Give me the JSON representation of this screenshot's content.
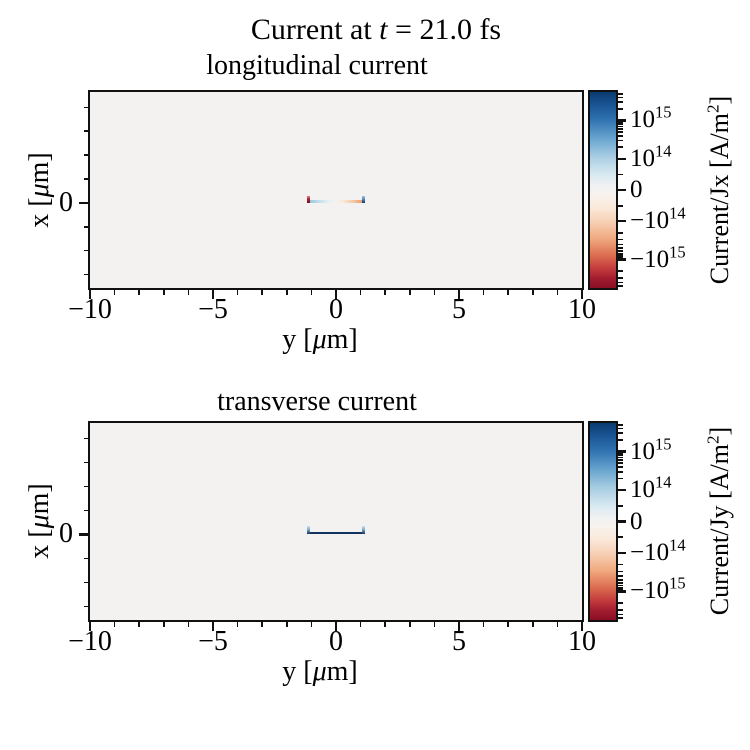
{
  "suptitle": {
    "pre": "Current at ",
    "var": "t",
    "post": " = 21.0 fs"
  },
  "colorbar_gradient_stops": [
    "#0a3b6f 0%",
    "#1b5797 7%",
    "#2f72b0 14%",
    "#6aa6cf 24%",
    "#a8cde2 33%",
    "#d8e9f1 42%",
    "#f0f1f2 48%",
    "#f7f3ef 52%",
    "#fbe9da 59%",
    "#f6cdb0 67%",
    "#f0a87f 75%",
    "#dd7052 83%",
    "#c43c3d 90%",
    "#a31d30 95%",
    "#8a0e25 100%"
  ],
  "chart_data": [
    {
      "type": "heatmap",
      "title": "longitudinal current",
      "xlabel_parts": {
        "pre": "y [",
        "mu": "μ",
        "post": "m]"
      },
      "ylabel_parts": {
        "pre": "x [",
        "mu": "μ",
        "post": "m]"
      },
      "xlim": [
        -10,
        10
      ],
      "ylim": [
        -1.78,
        2.32
      ],
      "x_major_ticks": [
        -10,
        -5,
        0,
        5,
        10
      ],
      "x_major_labels": [
        "−10",
        "−5",
        "0",
        "5",
        "10"
      ],
      "x_minor_step": 1,
      "y_major_ticks": [
        0
      ],
      "y_major_labels": [
        "0"
      ],
      "y_minor_step": 0.5,
      "bg_color": "#f3f2f1",
      "background_value": 0,
      "colorbar": {
        "unit_label": {
          "pre": "Current/Jx [A/m",
          "sup": "2",
          "post": "]"
        },
        "scale": {
          "type": "symlog",
          "linthresh": 100000000000000.0,
          "vmin": -5500000000000000.0,
          "vmax": 5500000000000000.0
        },
        "ticks": [
          {
            "base": "10",
            "exp": "15",
            "value": 1000000000000000.0
          },
          {
            "base": "10",
            "exp": "14",
            "value": 100000000000000.0
          },
          {
            "base": "0",
            "exp": "",
            "value": 0
          },
          {
            "base": "−10",
            "exp": "14",
            "value": -100000000000000.0
          },
          {
            "base": "−10",
            "exp": "15",
            "value": -1000000000000000.0
          }
        ]
      },
      "filament_data": {
        "x_um": 0,
        "y_extent_um": [
          -1.15,
          1.15
        ],
        "description": "Jx ≈ 0 everywhere except thin filament at x=0: strong negative spike (≈ −10^15 A/m²) at y=−1.15, weak positive Jx (light blue) for −1<y<0 fading to ~0 at center, weak negative (light orange) for 0<y<1, strong positive spike (≈ +10^15, dark blue) at y=+1.15"
      },
      "filament_style": {
        "line_css": "linear-gradient(90deg, #8fc0db 0%, #b8d7e8 15%, #e3eef4 35%, #f5f3f0 50%, #f9e8d9 63%, #f5c9a5 80%, #eda67c 93%, #e79a6e 100%)",
        "line_h": 2.7,
        "caps": [
          {
            "side": "left",
            "css": "linear-gradient(180deg, #d98a7a 0%, #a62433 45%, #7f1123 100%)",
            "h": 7
          },
          {
            "side": "right",
            "css": "linear-gradient(180deg, #a7c9e1 0%, #4c83b4 50%, #123a6d 100%)",
            "h": 7
          }
        ]
      }
    },
    {
      "type": "heatmap",
      "title": "transverse current",
      "xlabel_parts": {
        "pre": "y [",
        "mu": "μ",
        "post": "m]"
      },
      "ylabel_parts": {
        "pre": "x [",
        "mu": "μ",
        "post": "m]"
      },
      "xlim": [
        -10,
        10
      ],
      "ylim": [
        -1.78,
        2.32
      ],
      "x_major_ticks": [
        -10,
        -5,
        0,
        5,
        10
      ],
      "x_major_labels": [
        "−10",
        "−5",
        "0",
        "5",
        "10"
      ],
      "x_minor_step": 1,
      "y_major_ticks": [
        0
      ],
      "y_major_labels": [
        "0"
      ],
      "y_minor_step": 0.5,
      "bg_color": "#f3f2f1",
      "background_value": 0,
      "colorbar": {
        "unit_label": {
          "pre": "Current/Jy [A/m",
          "sup": "2",
          "post": "]"
        },
        "scale": {
          "type": "symlog",
          "linthresh": 100000000000000.0,
          "vmin": -5500000000000000.0,
          "vmax": 5500000000000000.0
        },
        "ticks": [
          {
            "base": "10",
            "exp": "15",
            "value": 1000000000000000.0
          },
          {
            "base": "10",
            "exp": "14",
            "value": 100000000000000.0
          },
          {
            "base": "0",
            "exp": "",
            "value": 0
          },
          {
            "base": "−10",
            "exp": "14",
            "value": -100000000000000.0
          },
          {
            "base": "−10",
            "exp": "15",
            "value": -1000000000000000.0
          }
        ]
      },
      "filament_data": {
        "x_um": 0,
        "y_extent_um": [
          -1.15,
          1.15
        ],
        "description": "Jy ≈ 0 everywhere except thin filament at x=0 spanning y=−1.15…1.15: uniform strong positive Jy (dark navy, ≈ +10^15 A/m²) with weak positive (light blue) upward caps at both ends"
      },
      "filament_style": {
        "line_css": "linear-gradient(90deg, #2a5a8f 0%, #10345f 5%, #10345f 95%, #2a5a8f 100%)",
        "line_h": 2.9,
        "caps": [
          {
            "side": "left",
            "css": "linear-gradient(180deg, #cfe0ee 0%, #7fa9cd 45%, #10345f 100%)",
            "h": 8
          },
          {
            "side": "right",
            "css": "linear-gradient(180deg, #cfe0ee 0%, #7fa9cd 45%, #10345f 100%)",
            "h": 8
          }
        ]
      }
    }
  ]
}
